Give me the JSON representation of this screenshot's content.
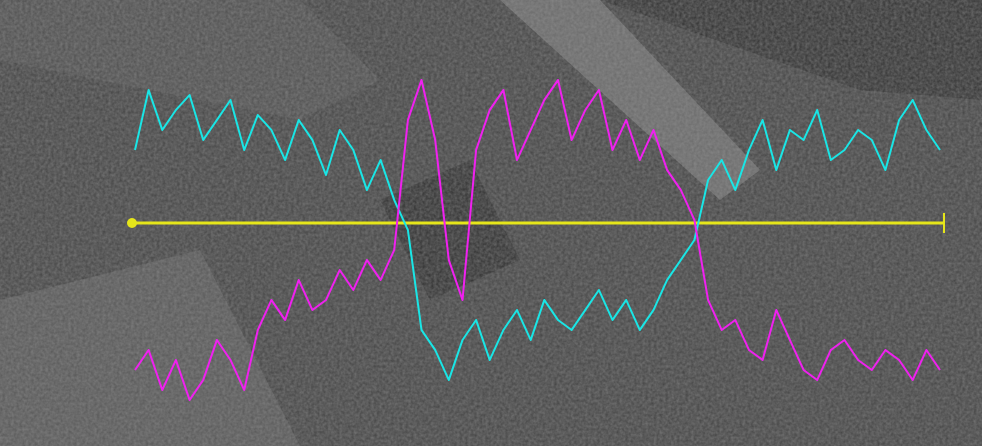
{
  "chart_data": {
    "type": "line",
    "series": [
      {
        "color": "#19e6e6",
        "values": [
          296,
          356,
          316,
          336,
          351,
          306,
          326,
          346,
          296,
          331,
          316,
          286,
          326,
          306,
          271,
          316,
          296,
          256,
          286,
          246,
          216,
          116,
          96,
          66,
          106,
          126,
          86,
          116,
          136,
          106,
          146,
          126,
          116,
          136,
          156,
          126,
          146,
          116,
          136,
          166,
          186,
          206,
          266,
          286,
          256,
          296,
          326,
          276,
          316,
          306,
          336,
          286,
          296,
          316,
          306,
          276,
          326,
          346,
          316,
          296
        ]
      },
      {
        "color": "#f020f0",
        "values": [
          76,
          96,
          56,
          86,
          46,
          66,
          106,
          86,
          56,
          116,
          146,
          126,
          166,
          136,
          146,
          176,
          156,
          186,
          166,
          196,
          326,
          366,
          306,
          186,
          146,
          296,
          336,
          356,
          286,
          316,
          346,
          366,
          306,
          336,
          356,
          296,
          326,
          286,
          316,
          276,
          256,
          226,
          146,
          116,
          126,
          96,
          86,
          136,
          106,
          76,
          66,
          96,
          106,
          86,
          76,
          96,
          86,
          66,
          96,
          76
        ]
      }
    ]
  }
}
